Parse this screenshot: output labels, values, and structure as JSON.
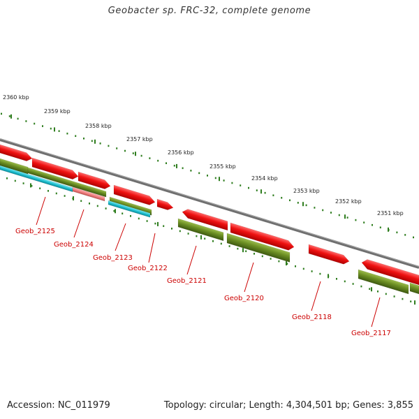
{
  "title": "Geobacter sp. FRC-32, complete genome",
  "footer": {
    "accession": "Accession: NC_011979",
    "summary": "Topology: circular; Length: 4,304,501 bp; Genes: 3,855"
  },
  "colors": {
    "forward_cds": "#ee1111",
    "reverse_cds": "#6b8e23",
    "rna": "#20c0d0",
    "pseudo": "#f08080",
    "backbone": "#808080",
    "tick": "#2e7d1e",
    "label": "#cc0000"
  },
  "ruler": [
    {
      "label": "2360 kbp",
      "kbp": 2360
    },
    {
      "label": "2359 kbp",
      "kbp": 2359
    },
    {
      "label": "2358 kbp",
      "kbp": 2358
    },
    {
      "label": "2357 kbp",
      "kbp": 2357
    },
    {
      "label": "2356 kbp",
      "kbp": 2356
    },
    {
      "label": "2355 kbp",
      "kbp": 2355
    },
    {
      "label": "2354 kbp",
      "kbp": 2354
    },
    {
      "label": "2353 kbp",
      "kbp": 2353
    },
    {
      "label": "2352 kbp",
      "kbp": 2352
    },
    {
      "label": "2351 kbp",
      "kbp": 2351
    }
  ],
  "genes": [
    {
      "label": "Geob_2125"
    },
    {
      "label": "Geob_2124"
    },
    {
      "label": "Geob_2123"
    },
    {
      "label": "Geob_2122"
    },
    {
      "label": "Geob_2121"
    },
    {
      "label": "Geob_2120"
    },
    {
      "label": "Geob_2118"
    },
    {
      "label": "Geob_2117"
    }
  ]
}
